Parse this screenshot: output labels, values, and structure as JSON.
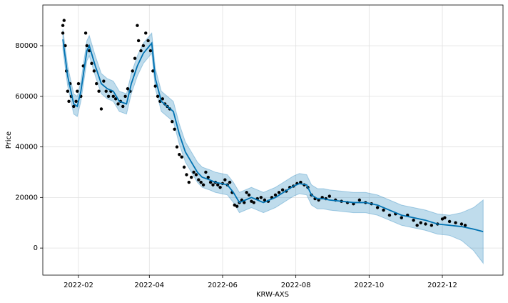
{
  "chart_data": {
    "type": "line",
    "xlabel": "KRW-AXS",
    "ylabel": "Price",
    "xlim": [
      1.3,
      384.5
    ],
    "ylim": [
      -10700,
      96100
    ],
    "xticks": [
      {
        "value": 31,
        "label": "2022-02"
      },
      {
        "value": 90,
        "label": "2022-04"
      },
      {
        "value": 151,
        "label": "2022-06"
      },
      {
        "value": 212,
        "label": "2022-08"
      },
      {
        "value": 273,
        "label": "2022-10"
      },
      {
        "value": 334,
        "label": "2022-12"
      }
    ],
    "yticks": [
      0,
      20000,
      40000,
      60000,
      80000
    ],
    "grid": true,
    "observed": {
      "color": "#000000",
      "x": [
        18,
        18,
        19,
        20,
        21,
        22,
        23,
        24,
        25,
        27,
        29,
        30,
        31,
        33,
        35,
        37,
        38,
        40,
        42,
        44,
        46,
        48,
        50,
        52,
        54,
        56,
        58,
        60,
        62,
        64,
        66,
        68,
        70,
        72,
        74,
        76,
        78,
        80,
        81,
        83,
        85,
        87,
        89,
        91,
        93,
        95,
        97,
        99,
        101,
        103,
        105,
        107,
        109,
        111,
        113,
        115,
        117,
        119,
        121,
        123,
        125,
        127,
        129,
        131,
        133,
        135,
        137,
        139,
        141,
        143,
        145,
        147,
        149,
        151,
        153,
        155,
        157,
        159,
        161,
        163,
        165,
        167,
        169,
        171,
        173,
        175,
        177,
        180,
        183,
        186,
        189,
        192,
        195,
        198,
        201,
        204,
        207,
        210,
        213,
        216,
        219,
        222,
        225,
        228,
        231,
        234,
        237,
        240,
        245,
        250,
        255,
        260,
        265,
        270,
        275,
        280,
        285,
        290,
        295,
        300,
        305,
        310,
        313,
        316,
        320,
        325,
        330,
        334,
        336,
        340,
        345,
        350,
        353
      ],
      "values": [
        88000,
        85000,
        90000,
        80000,
        70000,
        62000,
        58000,
        65000,
        60000,
        56000,
        58000,
        62000,
        65000,
        60000,
        72000,
        85000,
        80000,
        78000,
        73000,
        70000,
        65000,
        62000,
        55000,
        66000,
        62000,
        60000,
        62000,
        60000,
        59000,
        57000,
        58000,
        56000,
        60000,
        63000,
        62000,
        70000,
        75000,
        88000,
        82000,
        78000,
        80000,
        85000,
        82000,
        78000,
        70000,
        64000,
        60000,
        58000,
        59000,
        57000,
        56000,
        55000,
        50000,
        47000,
        40000,
        37000,
        36000,
        32000,
        29000,
        26000,
        28000,
        30000,
        29000,
        27000,
        26000,
        25000,
        30000,
        28000,
        26000,
        25000,
        26000,
        25000,
        24000,
        25500,
        27000,
        25000,
        26000,
        22000,
        17000,
        16500,
        18000,
        19000,
        18000,
        22000,
        21000,
        18500,
        18000,
        19500,
        20000,
        19000,
        18500,
        20000,
        21000,
        22000,
        23000,
        22500,
        24000,
        24500,
        25500,
        26000,
        25000,
        24000,
        21000,
        19500,
        19000,
        20000,
        19500,
        20500,
        19000,
        18500,
        18000,
        17500,
        19000,
        18000,
        17500,
        16000,
        15000,
        13000,
        13500,
        12000,
        13000,
        11000,
        9000,
        10000,
        9500,
        9000,
        9500,
        11500,
        12000,
        10500,
        10000,
        9500,
        9000
      ]
    },
    "forecast": {
      "color": "#0072B2",
      "band_color": "#0072B2",
      "x": [
        18,
        22,
        27,
        30,
        33,
        38,
        40,
        45,
        50,
        55,
        60,
        65,
        71,
        75,
        80,
        85,
        92,
        95,
        100,
        105,
        110,
        115,
        120,
        125,
        130,
        134,
        140,
        145,
        150,
        155,
        160,
        165,
        170,
        175,
        180,
        185,
        190,
        195,
        200,
        205,
        210,
        215,
        221,
        225,
        230,
        235,
        240,
        250,
        260,
        270,
        280,
        290,
        300,
        310,
        320,
        330,
        340,
        350,
        360,
        368
      ],
      "values": [
        82500,
        68000,
        57000,
        56000,
        62000,
        78000,
        80000,
        72000,
        65000,
        63000,
        62000,
        58000,
        57000,
        65000,
        72000,
        77000,
        81000,
        67000,
        58000,
        56000,
        54000,
        45000,
        38000,
        34000,
        30000,
        28000,
        27000,
        26000,
        25500,
        25000,
        22000,
        18000,
        19000,
        20000,
        19000,
        18000,
        19000,
        20000,
        21500,
        23000,
        24500,
        25500,
        25000,
        21000,
        19500,
        19500,
        19000,
        18500,
        18000,
        18000,
        17000,
        15000,
        13000,
        12000,
        11000,
        9500,
        9000,
        8500,
        7500,
        6500
      ],
      "lower": [
        78500,
        64000,
        53000,
        52000,
        58000,
        74000,
        76000,
        68000,
        61000,
        59000,
        58000,
        54000,
        53000,
        61000,
        68000,
        73000,
        77000,
        63000,
        54000,
        52000,
        50000,
        41000,
        34000,
        30000,
        26000,
        24000,
        23000,
        22000,
        21500,
        21000,
        18000,
        14000,
        15000,
        16000,
        15000,
        14000,
        15000,
        16000,
        17500,
        19000,
        20500,
        21500,
        21000,
        17000,
        15500,
        15500,
        15000,
        14500,
        14000,
        14000,
        13000,
        11000,
        9000,
        8000,
        7000,
        5500,
        5000,
        3000,
        -1000,
        -6000
      ],
      "upper": [
        86500,
        72000,
        61000,
        60000,
        66000,
        82000,
        84000,
        76000,
        69000,
        67000,
        66000,
        62000,
        61000,
        69000,
        76000,
        81000,
        85000,
        71000,
        62000,
        60000,
        58000,
        49000,
        42000,
        38000,
        34000,
        32000,
        31000,
        30000,
        29500,
        29000,
        26000,
        22000,
        23000,
        24000,
        23000,
        22000,
        23000,
        24000,
        25500,
        27000,
        28500,
        29500,
        29000,
        25000,
        23500,
        23500,
        23000,
        22500,
        22000,
        22000,
        21000,
        19000,
        17000,
        16000,
        15000,
        13500,
        13000,
        14000,
        16000,
        19000
      ]
    }
  }
}
